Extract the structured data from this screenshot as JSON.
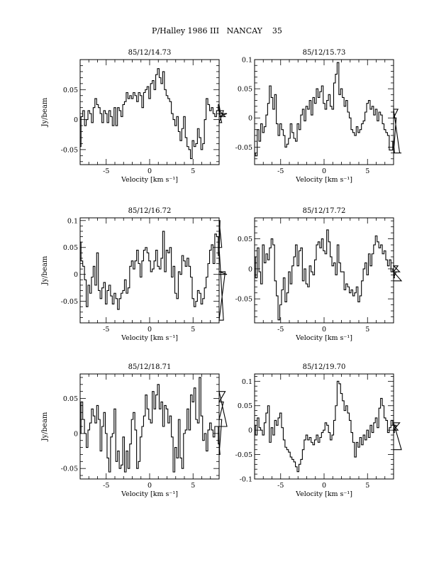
{
  "page": {
    "title": "P/Halley 1986 III   NANCAY    35"
  },
  "chart_data": [
    {
      "type": "line",
      "title": "85/12/14.73",
      "xlabel": "Velocity [km s⁻¹]",
      "ylabel": "Jy/beam",
      "xlim": [
        -8,
        8
      ],
      "ylim": [
        -0.075,
        0.1
      ],
      "xticks": [
        -5,
        0,
        5
      ],
      "xtick_labels": [
        "-5",
        "0",
        "5"
      ],
      "yticks": [
        -0.05,
        0,
        0.05
      ],
      "ytick_labels": [
        "-0.05",
        "0",
        "0.05"
      ],
      "x_start": -8.0,
      "x_step": 0.2,
      "series": [
        {
          "values": [
            -0.045,
            0.005,
            0.015,
            -0.01,
            0.0,
            0.015,
            0.01,
            -0.005,
            0.02,
            0.035,
            0.025,
            0.02,
            0.01,
            -0.005,
            0.015,
            0.01,
            -0.005,
            0.015,
            0.005,
            -0.01,
            0.02,
            -0.01,
            0.02,
            0.015,
            0.005,
            0.025,
            0.03,
            0.045,
            0.035,
            0.04,
            0.035,
            0.045,
            0.04,
            0.03,
            0.045,
            0.04,
            0.02,
            0.045,
            0.05,
            0.055,
            0.035,
            0.06,
            0.065,
            0.05,
            0.075,
            0.085,
            0.07,
            0.06,
            0.08,
            0.05,
            0.04,
            0.035,
            0.03,
            0.01,
            0.0,
            -0.01,
            0.005,
            -0.02,
            -0.035,
            -0.015,
            0.005,
            -0.03,
            -0.045,
            -0.05,
            -0.065,
            -0.035,
            -0.045,
            -0.04,
            -0.015,
            -0.03,
            -0.05,
            -0.04,
            0.0,
            0.035,
            0.025,
            0.015,
            0.02,
            0.01,
            0.005,
            0.015,
            0.025,
            0.015,
            -0.005,
            0.015,
            0.005,
            0.01
          ]
        }
      ]
    },
    {
      "type": "line",
      "title": "85/12/15.73",
      "xlabel": "Velocity [km s⁻¹]",
      "ylabel": "",
      "xlim": [
        -8,
        8
      ],
      "ylim": [
        -0.08,
        0.1
      ],
      "xticks": [
        -5,
        0,
        5
      ],
      "xtick_labels": [
        "-5",
        "0",
        "5"
      ],
      "yticks": [
        -0.05,
        0,
        0.05,
        0.1
      ],
      "ytick_labels": [
        "-0.05",
        "0",
        "0.05",
        "0.1"
      ],
      "x_start": -8.0,
      "x_step": 0.2,
      "series": [
        {
          "values": [
            -0.06,
            -0.065,
            -0.02,
            -0.04,
            -0.01,
            -0.025,
            -0.015,
            0.005,
            0.025,
            0.055,
            0.035,
            0.015,
            0.04,
            -0.01,
            -0.03,
            -0.01,
            -0.02,
            -0.03,
            -0.05,
            -0.045,
            -0.035,
            -0.01,
            -0.025,
            -0.035,
            -0.04,
            -0.01,
            -0.02,
            0.005,
            0.015,
            -0.005,
            0.02,
            0.015,
            0.03,
            0.005,
            0.035,
            0.025,
            0.05,
            0.035,
            0.045,
            0.055,
            0.025,
            0.015,
            0.03,
            0.04,
            0.02,
            0.015,
            0.06,
            0.075,
            0.095,
            0.04,
            0.05,
            0.035,
            0.02,
            0.03,
            0.01,
            0.0,
            -0.02,
            -0.025,
            -0.03,
            -0.015,
            -0.025,
            -0.02,
            -0.01,
            -0.005,
            0.01,
            0.025,
            0.03,
            0.015,
            0.02,
            0.005,
            0.015,
            -0.005,
            0.01,
            0.005,
            -0.01,
            -0.02,
            -0.025,
            -0.03,
            -0.055,
            -0.055,
            -0.04,
            -0.06,
            0.0,
            0.015,
            -0.06,
            -0.06
          ]
        }
      ]
    },
    {
      "type": "line",
      "title": "85/12/16.72",
      "xlabel": "Velocity [km s⁻¹]",
      "ylabel": "Jy/beam",
      "xlim": [
        -8,
        8
      ],
      "ylim": [
        -0.09,
        0.105
      ],
      "xticks": [
        -5,
        0,
        5
      ],
      "xtick_labels": [
        "-5",
        "0",
        "5"
      ],
      "yticks": [
        -0.05,
        0,
        0.05,
        0.1
      ],
      "ytick_labels": [
        "-0.05",
        "0",
        "0.05",
        "0.1"
      ],
      "x_start": -8.0,
      "x_step": 0.2,
      "series": [
        {
          "values": [
            0.06,
            0.025,
            0.015,
            -0.01,
            -0.06,
            -0.02,
            -0.035,
            -0.005,
            0.015,
            -0.02,
            0.04,
            -0.03,
            -0.045,
            -0.025,
            -0.015,
            -0.055,
            -0.03,
            -0.02,
            -0.04,
            -0.055,
            -0.035,
            -0.045,
            -0.065,
            -0.045,
            -0.035,
            -0.03,
            -0.01,
            -0.035,
            -0.025,
            0.015,
            0.025,
            0.01,
            0.025,
            0.045,
            0.02,
            -0.005,
            0.025,
            0.045,
            0.05,
            0.04,
            0.025,
            0.005,
            0.01,
            0.025,
            0.045,
            0.015,
            0.01,
            0.03,
            0.08,
            0.005,
            0.045,
            0.04,
            0.05,
            -0.005,
            0.015,
            -0.035,
            -0.045,
            0.005,
            0.0,
            0.035,
            0.025,
            0.015,
            0.03,
            0.015,
            -0.005,
            -0.045,
            -0.06,
            -0.05,
            -0.03,
            -0.035,
            -0.055,
            -0.045,
            -0.025,
            -0.005,
            0.02,
            0.045,
            0.055,
            0.02,
            0.075,
            0.07,
            0.035,
            0.1,
            0.05,
            -0.085,
            0.005,
            0.0
          ]
        }
      ]
    },
    {
      "type": "line",
      "title": "85/12/17.72",
      "xlabel": "Velocity [km s⁻¹]",
      "ylabel": "",
      "xlim": [
        -8,
        8
      ],
      "ylim": [
        -0.09,
        0.085
      ],
      "xticks": [
        -5,
        0,
        5
      ],
      "xtick_labels": [
        "-5",
        "0",
        "5"
      ],
      "yticks": [
        -0.05,
        0,
        0.05
      ],
      "ytick_labels": [
        "-0.05",
        "0",
        "0.05"
      ],
      "x_start": -8.0,
      "x_step": 0.2,
      "series": [
        {
          "values": [
            0.02,
            -0.015,
            0.035,
            -0.005,
            -0.025,
            0.04,
            0.01,
            0.025,
            0.015,
            0.035,
            0.05,
            0.04,
            -0.02,
            -0.045,
            -0.085,
            -0.06,
            -0.035,
            -0.015,
            -0.055,
            -0.04,
            -0.005,
            -0.025,
            0.005,
            0.02,
            0.04,
            0.005,
            0.03,
            0.035,
            -0.02,
            0.0,
            -0.025,
            -0.03,
            0.005,
            -0.005,
            -0.01,
            0.015,
            0.04,
            0.045,
            0.035,
            0.05,
            0.03,
            0.025,
            0.065,
            0.045,
            0.02,
            0.005,
            0.01,
            -0.01,
            0.04,
            0.01,
            -0.005,
            -0.005,
            -0.035,
            -0.025,
            -0.03,
            -0.04,
            -0.035,
            -0.045,
            -0.04,
            -0.03,
            -0.055,
            -0.045,
            -0.02,
            0.0,
            0.01,
            -0.01,
            0.025,
            0.005,
            0.025,
            0.04,
            0.055,
            0.045,
            0.035,
            0.04,
            0.025,
            0.03,
            0.015,
            0.005,
            0.015,
            -0.005,
            0.0,
            -0.015,
            -0.005,
            0.005,
            -0.005,
            -0.02
          ]
        }
      ]
    },
    {
      "type": "line",
      "title": "85/12/18.71",
      "xlabel": "Velocity [km s⁻¹]",
      "ylabel": "Jy/beam",
      "xlim": [
        -8,
        8
      ],
      "ylim": [
        -0.065,
        0.085
      ],
      "xticks": [
        -5,
        0,
        5
      ],
      "xtick_labels": [
        "-5",
        "0",
        "5"
      ],
      "yticks": [
        -0.05,
        0,
        0.05
      ],
      "ytick_labels": [
        "-0.05",
        "0",
        "0.05"
      ],
      "x_start": -8.0,
      "x_step": 0.2,
      "series": [
        {
          "values": [
            0.0,
            0.045,
            0.02,
            0.0,
            -0.02,
            0.005,
            0.015,
            0.035,
            0.025,
            0.015,
            0.04,
            0.02,
            -0.025,
            0.01,
            0.03,
            0.0,
            -0.035,
            -0.055,
            -0.005,
            0.0,
            0.035,
            -0.04,
            -0.025,
            -0.05,
            -0.045,
            -0.005,
            -0.055,
            -0.025,
            -0.05,
            -0.015,
            0.02,
            0.03,
            0.005,
            -0.05,
            -0.04,
            -0.005,
            0.01,
            0.025,
            0.055,
            0.035,
            0.02,
            0.015,
            0.06,
            0.035,
            0.055,
            0.07,
            0.035,
            0.045,
            0.01,
            0.04,
            0.035,
            0.015,
            0.025,
            -0.005,
            -0.055,
            -0.02,
            -0.035,
            0.02,
            -0.035,
            -0.05,
            0.0,
            0.005,
            0.035,
            0.005,
            0.055,
            0.045,
            0.065,
            0.02,
            0.015,
            0.08,
            0.025,
            -0.01,
            0.0,
            -0.025,
            0.005,
            0.015,
            0.005,
            -0.005,
            0.01,
            0.01,
            -0.015,
            -0.03,
            0.02,
            0.045,
            0.06,
            0.01
          ]
        }
      ]
    },
    {
      "type": "line",
      "title": "85/12/19.70",
      "xlabel": "Velocity [km s⁻¹]",
      "ylabel": "",
      "xlim": [
        -8,
        8
      ],
      "ylim": [
        -0.1,
        0.115
      ],
      "xticks": [
        -5,
        0,
        5
      ],
      "xtick_labels": [
        "-5",
        "0",
        "5"
      ],
      "yticks": [
        -0.1,
        -0.05,
        0,
        0.05,
        0.1
      ],
      "ytick_labels": [
        "-0.1",
        "-0.05",
        "0",
        "0.05",
        "0.1"
      ],
      "x_start": -8.0,
      "x_step": 0.2,
      "series": [
        {
          "values": [
            0.01,
            -0.01,
            0.025,
            0.005,
            0.0,
            -0.01,
            0.015,
            0.035,
            0.05,
            -0.025,
            0.005,
            -0.01,
            0.02,
            0.01,
            0.025,
            0.035,
            0.005,
            -0.02,
            -0.035,
            -0.04,
            -0.045,
            -0.055,
            -0.06,
            -0.065,
            -0.075,
            -0.085,
            -0.07,
            -0.06,
            -0.04,
            -0.02,
            -0.01,
            -0.02,
            -0.015,
            -0.025,
            -0.03,
            -0.02,
            -0.01,
            -0.025,
            -0.015,
            -0.005,
            0.0,
            0.015,
            0.01,
            -0.005,
            -0.02,
            -0.01,
            0.02,
            0.05,
            0.1,
            0.095,
            0.075,
            0.06,
            0.04,
            0.05,
            0.035,
            0.02,
            -0.005,
            -0.025,
            -0.055,
            -0.025,
            -0.035,
            -0.015,
            -0.03,
            -0.01,
            -0.02,
            0.0,
            -0.015,
            0.01,
            -0.005,
            0.015,
            0.025,
            0.005,
            0.045,
            0.065,
            0.05,
            0.025,
            0.02,
            -0.005,
            0.005,
            0.02,
            0.01,
            -0.005,
            0.01,
            0.0,
            0.015,
            -0.04
          ]
        }
      ]
    }
  ]
}
